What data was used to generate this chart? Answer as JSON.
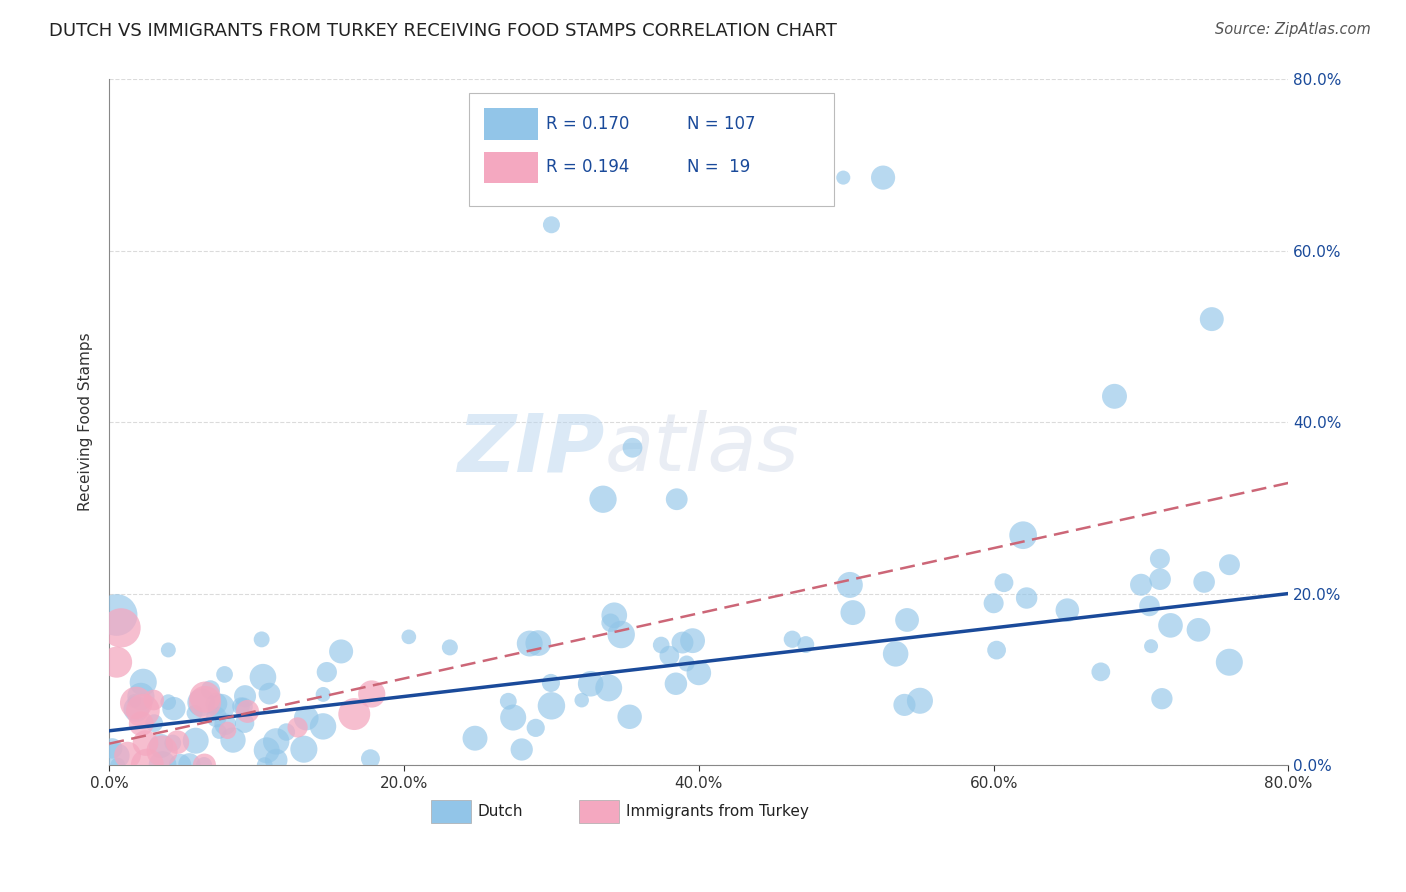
{
  "title": "DUTCH VS IMMIGRANTS FROM TURKEY RECEIVING FOOD STAMPS CORRELATION CHART",
  "source": "Source: ZipAtlas.com",
  "ylabel": "Receiving Food Stamps",
  "xlim": [
    0.0,
    0.8
  ],
  "ylim": [
    0.0,
    0.8
  ],
  "xticks": [
    0.0,
    0.2,
    0.4,
    0.6,
    0.8
  ],
  "yticks": [
    0.0,
    0.2,
    0.4,
    0.6,
    0.8
  ],
  "xtick_labels": [
    "0.0%",
    "20.0%",
    "40.0%",
    "60.0%",
    "80.0%"
  ],
  "dutch_color": "#92c5e8",
  "turkey_color": "#f4a8c0",
  "dutch_line_color": "#1a4a9a",
  "turkey_line_color": "#cc6677",
  "legend_dutch_R": "R = 0.170",
  "legend_dutch_N": "N = 107",
  "legend_turkey_R": "R = 0.194",
  "legend_turkey_N": "N =  19",
  "legend_label_dutch": "Dutch",
  "legend_label_turkey": "Immigrants from Turkey",
  "dutch_N": 107,
  "turkey_N": 19,
  "watermark_zip": "ZIP",
  "watermark_atlas": "atlas",
  "background_color": "#ffffff",
  "grid_color": "#cccccc",
  "right_ytick_labels": [
    "80.0%",
    "60.0%",
    "40.0%",
    "20.0%",
    "0.0%"
  ],
  "right_yticks": [
    0.8,
    0.6,
    0.4,
    0.2,
    0.0
  ],
  "dutch_slope": 0.2,
  "dutch_intercept": 0.04,
  "turkey_slope": 0.38,
  "turkey_intercept": 0.025
}
